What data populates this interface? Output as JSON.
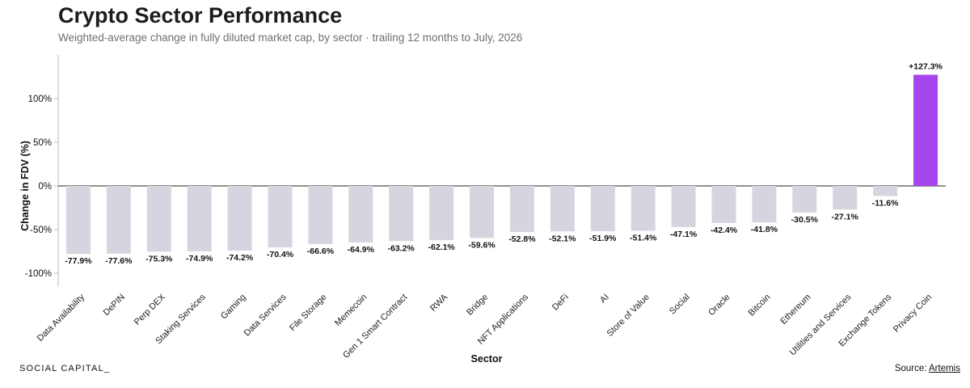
{
  "header": {
    "title": "Crypto Sector Performance",
    "subtitle": "Weighted-average change in fully diluted market cap, by sector · trailing 12 months to July, 2026"
  },
  "footer": {
    "brand": "SOCIAL CAPITAL_",
    "source_prefix": "Source: ",
    "source_name": "Artemis"
  },
  "colors": {
    "bar": "#d6d5df",
    "highlight": "#a545ee",
    "zero_line": "#222222",
    "axis_line": "#bbbbbb"
  },
  "chart_data": {
    "type": "bar",
    "title": "Crypto Sector Performance",
    "xlabel": "Sector",
    "ylabel": "Change in FDV (%)",
    "ylim": [
      -115,
      150
    ],
    "yticks": [
      -100,
      -50,
      0,
      50,
      100
    ],
    "ytick_labels": [
      "-100%",
      "-50%",
      "0%",
      "50%",
      "100%"
    ],
    "grid": false,
    "highlight_category": "Privacy Coin",
    "categories": [
      "Data Availability",
      "DePIN",
      "Perp DEX",
      "Staking Services",
      "Gaming",
      "Data Services",
      "File Storage",
      "Memecoin",
      "Gen 1 Smart Contract",
      "RWA",
      "Bridge",
      "NFT Applications",
      "DeFi",
      "AI",
      "Store of Value",
      "Social",
      "Oracle",
      "Bitcoin",
      "Ethereum",
      "Utilities and Services",
      "Exchange Tokens",
      "Privacy Coin"
    ],
    "values": [
      -77.9,
      -77.6,
      -75.3,
      -74.9,
      -74.2,
      -70.4,
      -66.6,
      -64.9,
      -63.2,
      -62.1,
      -59.6,
      -52.8,
      -52.1,
      -51.9,
      -51.4,
      -47.1,
      -42.4,
      -41.8,
      -30.5,
      -27.1,
      -11.6,
      127.3
    ],
    "value_labels": [
      "-77.9%",
      "-77.6%",
      "-75.3%",
      "-74.9%",
      "-74.2%",
      "-70.4%",
      "-66.6%",
      "-64.9%",
      "-63.2%",
      "-62.1%",
      "-59.6%",
      "-52.8%",
      "-52.1%",
      "-51.9%",
      "-51.4%",
      "-47.1%",
      "-42.4%",
      "-41.8%",
      "-30.5%",
      "-27.1%",
      "-11.6%",
      "+127.3%"
    ]
  }
}
